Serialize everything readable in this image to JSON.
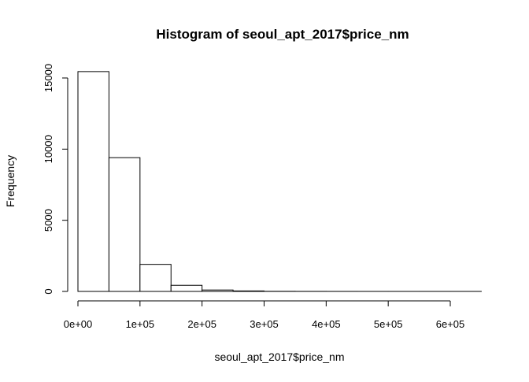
{
  "chart_data": {
    "type": "bar",
    "title": "Histogram of seoul_apt_2017$price_nm",
    "xlabel": "seoul_apt_2017$price_nm",
    "ylabel": "Frequency",
    "bin_width": 50000,
    "bins": [
      {
        "start": 0,
        "end": 50000,
        "count": 15450
      },
      {
        "start": 50000,
        "end": 100000,
        "count": 9400
      },
      {
        "start": 100000,
        "end": 150000,
        "count": 1900
      },
      {
        "start": 150000,
        "end": 200000,
        "count": 430
      },
      {
        "start": 200000,
        "end": 250000,
        "count": 100
      },
      {
        "start": 250000,
        "end": 300000,
        "count": 35
      },
      {
        "start": 300000,
        "end": 350000,
        "count": 8
      },
      {
        "start": 350000,
        "end": 400000,
        "count": 4
      },
      {
        "start": 400000,
        "end": 450000,
        "count": 2
      },
      {
        "start": 450000,
        "end": 500000,
        "count": 1
      },
      {
        "start": 500000,
        "end": 550000,
        "count": 1
      },
      {
        "start": 550000,
        "end": 600000,
        "count": 1
      },
      {
        "start": 600000,
        "end": 650000,
        "count": 1
      }
    ],
    "xlim": [
      0,
      600000
    ],
    "ylim": [
      0,
      15000
    ],
    "x_ticks": [
      {
        "value": 0,
        "label": "0e+00"
      },
      {
        "value": 100000,
        "label": "1e+05"
      },
      {
        "value": 200000,
        "label": "2e+05"
      },
      {
        "value": 300000,
        "label": "3e+05"
      },
      {
        "value": 400000,
        "label": "4e+05"
      },
      {
        "value": 500000,
        "label": "5e+05"
      },
      {
        "value": 600000,
        "label": "6e+05"
      }
    ],
    "y_ticks": [
      {
        "value": 0,
        "label": "0"
      },
      {
        "value": 5000,
        "label": "5000"
      },
      {
        "value": 10000,
        "label": "10000"
      },
      {
        "value": 15000,
        "label": "15000"
      }
    ],
    "grid": false,
    "legend": "none",
    "bar_fill": "#ffffff",
    "bar_stroke": "#000000"
  }
}
